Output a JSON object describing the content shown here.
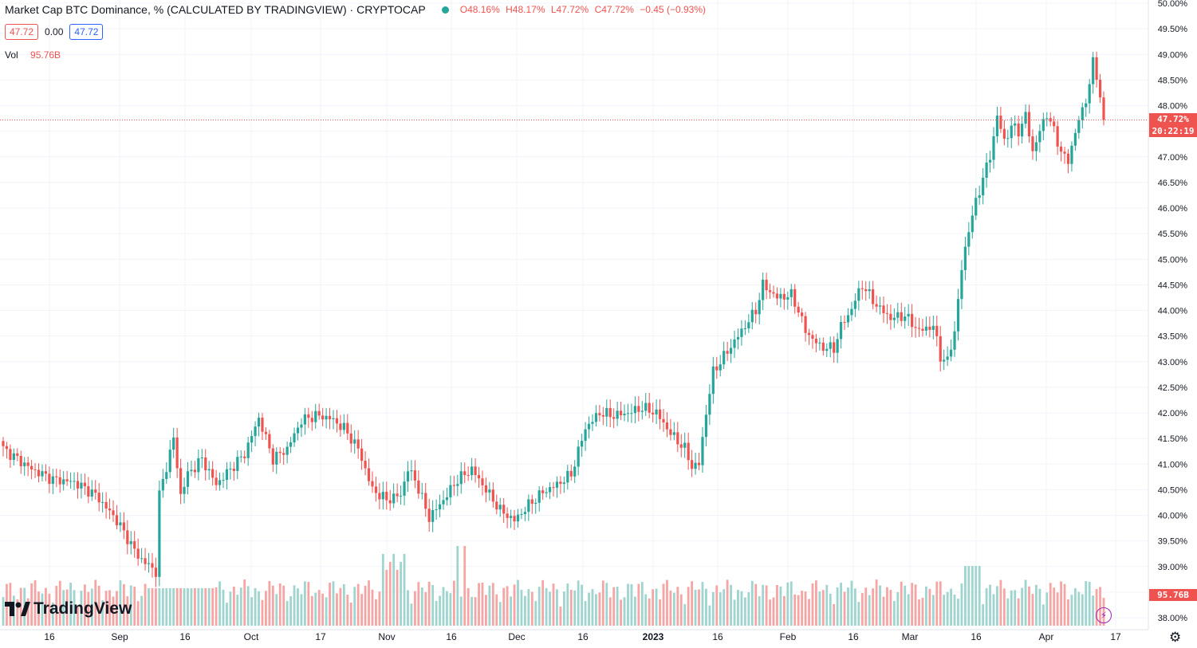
{
  "header": {
    "title": "Market Cap BTC Dominance, % (CALCULATED BY TRADINGVIEW) · CRYPTOCAP",
    "ohlc": {
      "o": "O48.16%",
      "h": "H48.17%",
      "l": "L47.72%",
      "c": "C47.72%",
      "chg": "−0.45 (−0.93%)"
    },
    "box_left": "47.72",
    "box_mid": "0.00",
    "box_right": "47.72",
    "vol_label": "Vol",
    "vol_value": "95.76B"
  },
  "tags": {
    "price": "47.72%",
    "countdown": "20:22:19",
    "volume": "95.76B"
  },
  "logo_text": "TradingView",
  "colors": {
    "up": "#26a69a",
    "down": "#ef5350",
    "up_vol": "#9fd4cf",
    "down_vol": "#f5a5a3",
    "grid": "#f0f3fa"
  },
  "chart_data": {
    "type": "candlestick",
    "title": "Market Cap BTC Dominance, % (CALCULATED BY TRADINGVIEW) · CRYPTOCAP",
    "y_axis": {
      "ticks": [
        "38.00%",
        "38.50%",
        "39.00%",
        "39.50%",
        "40.00%",
        "40.50%",
        "41.00%",
        "41.50%",
        "42.00%",
        "42.50%",
        "43.00%",
        "43.50%",
        "44.00%",
        "44.50%",
        "45.00%",
        "45.50%",
        "46.00%",
        "46.50%",
        "47.00%",
        "47.50%",
        "48.00%",
        "48.50%",
        "49.00%",
        "49.50%",
        "50.00%"
      ],
      "range": [
        38.0,
        50.0
      ]
    },
    "x_axis": {
      "ticks": [
        "16",
        "Sep",
        "16",
        "Oct",
        "17",
        "Nov",
        "16",
        "Dec",
        "16",
        "2023",
        "16",
        "Feb",
        "16",
        "Mar",
        "16",
        "Apr",
        "17"
      ]
    },
    "close_anchors": [
      [
        0,
        41.3
      ],
      [
        8,
        40.9
      ],
      [
        14,
        40.7
      ],
      [
        20,
        40.65
      ],
      [
        26,
        40.4
      ],
      [
        32,
        39.9
      ],
      [
        38,
        39.2
      ],
      [
        43,
        38.9
      ],
      [
        44,
        40.4
      ],
      [
        48,
        41.5
      ],
      [
        50,
        40.4
      ],
      [
        52,
        40.8
      ],
      [
        56,
        41.1
      ],
      [
        60,
        40.6
      ],
      [
        64,
        40.9
      ],
      [
        68,
        41.2
      ],
      [
        72,
        41.9
      ],
      [
        76,
        41.1
      ],
      [
        80,
        41.3
      ],
      [
        84,
        41.85
      ],
      [
        88,
        41.95
      ],
      [
        92,
        41.9
      ],
      [
        96,
        41.7
      ],
      [
        100,
        41.3
      ],
      [
        104,
        40.5
      ],
      [
        108,
        40.3
      ],
      [
        112,
        40.4
      ],
      [
        114,
        40.9
      ],
      [
        116,
        40.7
      ],
      [
        120,
        39.95
      ],
      [
        124,
        40.3
      ],
      [
        128,
        40.7
      ],
      [
        132,
        40.9
      ],
      [
        136,
        40.5
      ],
      [
        140,
        40.1
      ],
      [
        144,
        39.9
      ],
      [
        148,
        40.2
      ],
      [
        152,
        40.45
      ],
      [
        156,
        40.6
      ],
      [
        160,
        40.8
      ],
      [
        164,
        41.7
      ],
      [
        168,
        42.0
      ],
      [
        172,
        41.95
      ],
      [
        176,
        42.0
      ],
      [
        180,
        42.1
      ],
      [
        184,
        42.0
      ],
      [
        188,
        41.6
      ],
      [
        192,
        41.3
      ],
      [
        194,
        40.95
      ],
      [
        196,
        41.0
      ],
      [
        198,
        42.0
      ],
      [
        200,
        42.8
      ],
      [
        204,
        43.2
      ],
      [
        208,
        43.6
      ],
      [
        212,
        44.0
      ],
      [
        214,
        44.5
      ],
      [
        218,
        44.25
      ],
      [
        222,
        44.3
      ],
      [
        224,
        44.0
      ],
      [
        226,
        43.6
      ],
      [
        230,
        43.3
      ],
      [
        234,
        43.25
      ],
      [
        236,
        43.7
      ],
      [
        238,
        43.9
      ],
      [
        240,
        44.2
      ],
      [
        242,
        44.5
      ],
      [
        244,
        44.3
      ],
      [
        246,
        44.1
      ],
      [
        250,
        43.85
      ],
      [
        254,
        43.9
      ],
      [
        258,
        43.6
      ],
      [
        262,
        43.7
      ],
      [
        264,
        43.1
      ],
      [
        266,
        43.0
      ],
      [
        268,
        43.6
      ],
      [
        270,
        44.8
      ],
      [
        272,
        45.6
      ],
      [
        274,
        46.1
      ],
      [
        276,
        46.6
      ],
      [
        278,
        47.0
      ],
      [
        280,
        47.8
      ],
      [
        282,
        47.3
      ],
      [
        284,
        47.6
      ],
      [
        286,
        47.5
      ],
      [
        288,
        47.8
      ],
      [
        290,
        47.1
      ],
      [
        292,
        47.5
      ],
      [
        294,
        47.85
      ],
      [
        296,
        47.5
      ],
      [
        298,
        47.1
      ],
      [
        300,
        46.9
      ],
      [
        302,
        47.5
      ],
      [
        304,
        47.9
      ],
      [
        306,
        48.4
      ],
      [
        307,
        48.85
      ],
      [
        308,
        48.6
      ],
      [
        309,
        48.16
      ],
      [
        310,
        47.72
      ]
    ],
    "volume_bars": 311,
    "last": {
      "open": "48.16%",
      "high": "48.17%",
      "low": "47.72%",
      "close": "47.72%",
      "change": "−0.45 (−0.93%)",
      "volume": "95.76B"
    }
  }
}
